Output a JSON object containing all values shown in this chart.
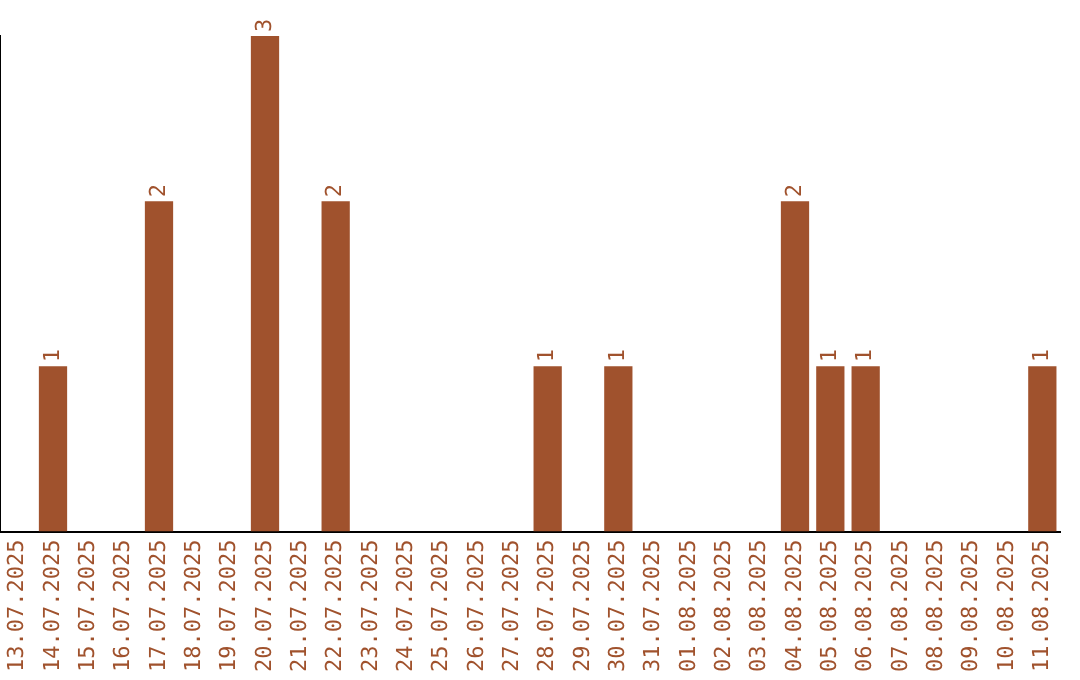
{
  "chart_data": {
    "type": "bar",
    "categories": [
      "13.07.2025",
      "14.07.2025",
      "15.07.2025",
      "16.07.2025",
      "17.07.2025",
      "18.07.2025",
      "19.07.2025",
      "20.07.2025",
      "21.07.2025",
      "22.07.2025",
      "23.07.2025",
      "24.07.2025",
      "25.07.2025",
      "26.07.2025",
      "27.07.2025",
      "28.07.2025",
      "29.07.2025",
      "30.07.2025",
      "31.07.2025",
      "01.08.2025",
      "02.08.2025",
      "03.08.2025",
      "04.08.2025",
      "05.08.2025",
      "06.08.2025",
      "07.08.2025",
      "08.08.2025",
      "09.08.2025",
      "10.08.2025",
      "11.08.2025"
    ],
    "values": [
      0,
      1,
      0,
      0,
      2,
      0,
      0,
      3,
      0,
      2,
      0,
      0,
      0,
      0,
      0,
      1,
      0,
      1,
      0,
      0,
      0,
      0,
      2,
      1,
      1,
      0,
      0,
      0,
      0,
      1
    ],
    "value_labels": [
      null,
      "1",
      null,
      null,
      "2",
      null,
      null,
      "3",
      null,
      "2",
      null,
      null,
      null,
      null,
      null,
      "1",
      null,
      "1",
      null,
      null,
      null,
      null,
      "2",
      "1",
      "1",
      null,
      null,
      null,
      null,
      "1"
    ],
    "color": "#a0522d",
    "tick_labels": "x",
    "grid": false,
    "legend": false
  }
}
